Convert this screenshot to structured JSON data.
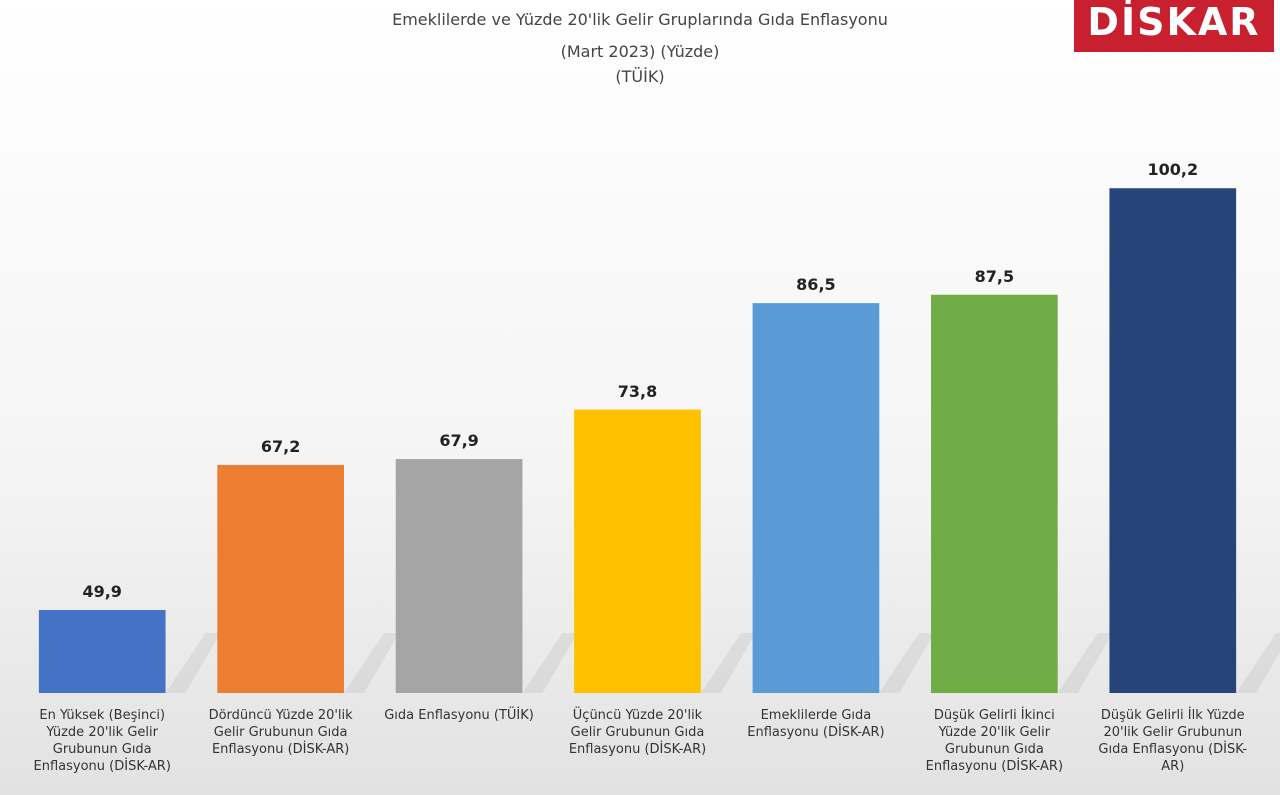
{
  "chart_data": {
    "type": "bar",
    "title": "Emeklilerde ve Yüzde 20'lik Gelir Gruplarında Gıda Enflasyonu",
    "subtitle": "(Mart 2023) (Yüzde)",
    "source": "(TÜİK)",
    "logo": "DİSKAR",
    "categories": [
      "En Yüksek (Beşinci) Yüzde 20'lik Gelir Grubunun Gıda Enflasyonu (DİSK-AR)",
      "Dördüncü Yüzde 20'lik Gelir Grubunun Gıda Enflasyonu (DİSK-AR)",
      "Gıda Enflasyonu (TÜİK)",
      "Üçüncü Yüzde 20'lik Gelir Grubunun Gıda Enflasyonu (DİSK-AR)",
      "Emeklilerde Gıda Enflasyonu (DİSK-AR)",
      "Düşük Gelirli İkinci Yüzde 20'lik Gelir Grubunun Gıda Enflasyonu (DİSK-AR)",
      "Düşük Gelirli İlk Yüzde 20'lik Gelir Grubunun Gıda Enflasyonu (DİSK-AR)"
    ],
    "values": [
      49.9,
      67.2,
      67.9,
      73.8,
      86.5,
      87.5,
      100.2
    ],
    "value_labels": [
      "49,9",
      "67,2",
      "67,9",
      "73,8",
      "86,5",
      "87,5",
      "100,2"
    ],
    "colors": [
      "#4472c4",
      "#ed7d31",
      "#a5a5a5",
      "#ffc000",
      "#5b9bd5",
      "#70ad47",
      "#264478"
    ],
    "ylim": [
      40,
      105
    ]
  }
}
